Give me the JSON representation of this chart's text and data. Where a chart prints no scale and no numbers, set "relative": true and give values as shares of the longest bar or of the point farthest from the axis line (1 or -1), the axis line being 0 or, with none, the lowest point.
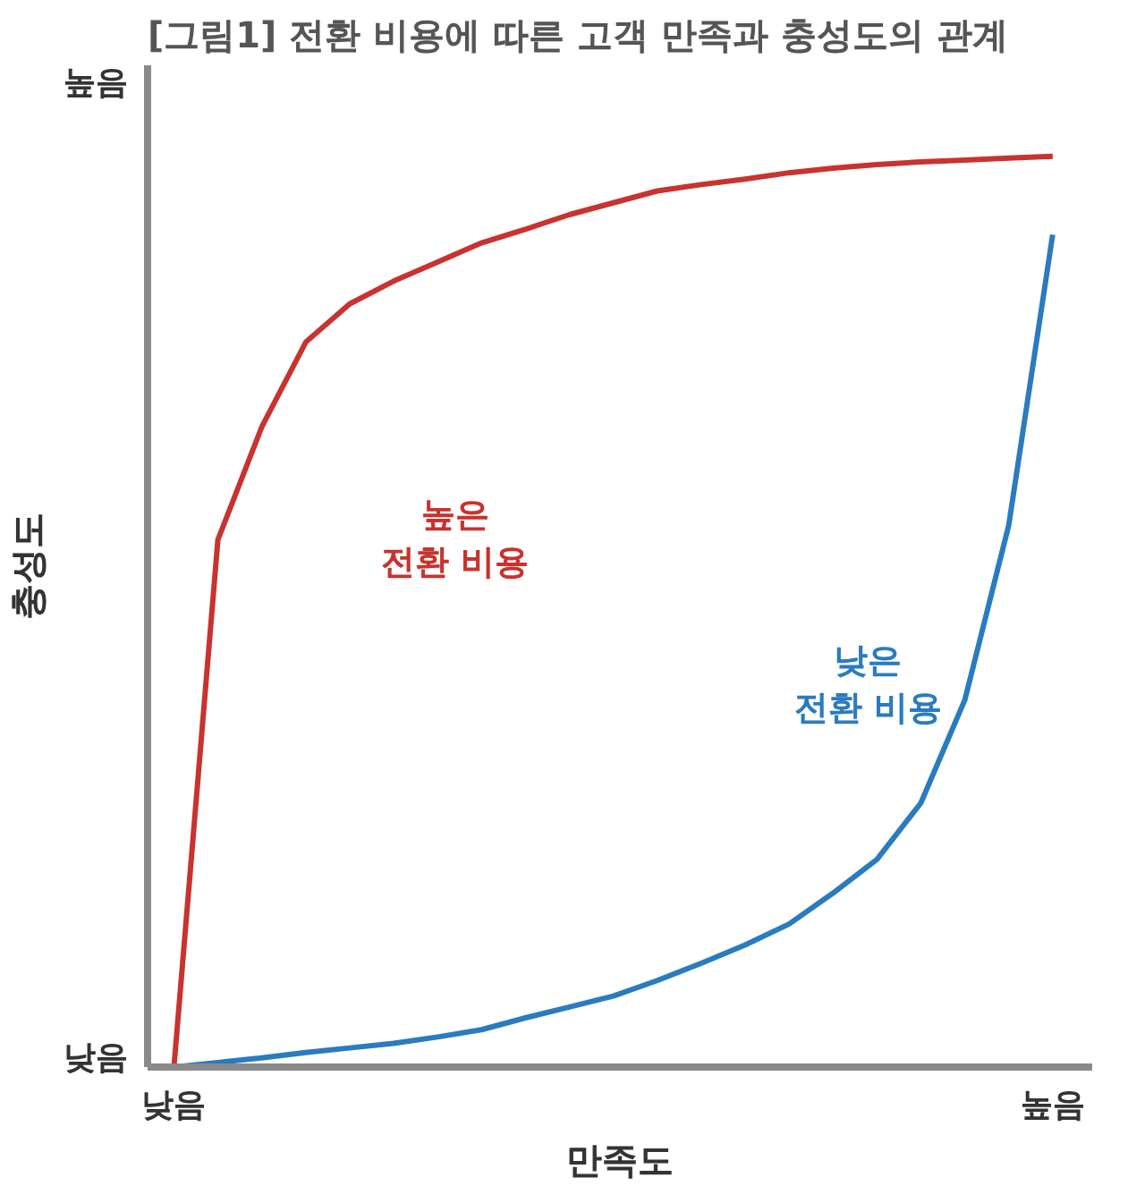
{
  "chart_data": {
    "type": "line",
    "title": "[그림1] 전환 비용에 따른 고객 만족과 충성도의 관계",
    "xlabel": "만족도",
    "ylabel": "충성도",
    "relative": true,
    "annotations": [
      "낮음",
      "높음",
      "낮음",
      "높음"
    ],
    "categories": [
      null,
      null,
      null,
      null,
      null,
      null,
      null,
      null,
      null,
      null,
      null,
      null,
      null,
      null,
      null,
      null,
      null,
      null,
      null,
      null,
      null
    ],
    "grid": false,
    "legend": false,
    "line_style": "solid",
    "series": [
      {
        "name": "높은 전환 비용",
        "color": "#c8332f",
        "values": [
          0,
          0.579,
          0.703,
          0.796,
          0.838,
          0.863,
          0.884,
          0.905,
          0.92,
          0.936,
          0.949,
          0.962,
          0.969,
          0.975,
          0.982,
          0.987,
          0.991,
          0.994,
          0.996,
          0.998,
          1
        ]
      },
      {
        "name": "낮은 전환 비용",
        "color": "#2a7bbf",
        "values": [
          0,
          0.005,
          0.01,
          0.016,
          0.021,
          0.026,
          0.033,
          0.041,
          0.054,
          0.066,
          0.078,
          0.095,
          0.114,
          0.134,
          0.157,
          0.191,
          0.228,
          0.29,
          0.403,
          0.595,
          0.914
        ]
      }
    ]
  }
}
